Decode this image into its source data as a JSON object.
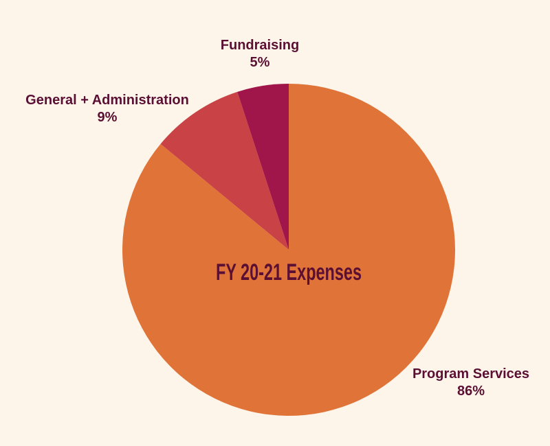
{
  "chart_data": {
    "type": "pie",
    "title": "FY 20-21 Expenses",
    "slices": [
      {
        "label": "Program Services",
        "value": 86,
        "value_label": "86%",
        "color": "#e07438"
      },
      {
        "label": "General + Administration",
        "value": 9,
        "value_label": "9%",
        "color": "#c94245"
      },
      {
        "label": "Fundraising",
        "value": 5,
        "value_label": "5%",
        "color": "#a0154a"
      }
    ]
  },
  "colors": {
    "background": "#fdf5ea",
    "text": "#5a0f33"
  }
}
